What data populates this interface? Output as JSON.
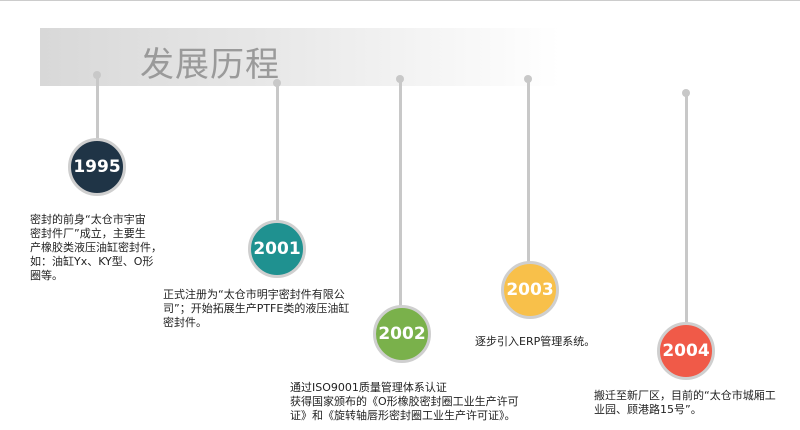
{
  "header": {
    "title": "发展历程"
  },
  "timeline": [
    {
      "year": "1995",
      "color": "#1f3446",
      "text": "密封的前身“太仓市宇宙\n密封件厂”成立，主要生\n产橡胶类液压油缸密封件，\n如：油缸Yx、KY型、O形\n圈等。"
    },
    {
      "year": "2001",
      "color": "#1f9190",
      "text": "正式注册为“太仓市明宇密封件有限公\n司”；开始拓展生产PTFE类的液压油缸\n密封件。"
    },
    {
      "year": "2002",
      "color": "#7ab14b",
      "text": "通过ISO9001质量管理体系认证\n获得国家颁布的《O形橡胶密封圈工业生产许可\n证》和《旋转轴唇形密封圈工业生产许可证》。"
    },
    {
      "year": "2003",
      "color": "#f8c04a",
      "text": "逐步引入ERP管理系统。"
    },
    {
      "year": "2004",
      "color": "#f05a48",
      "text": "搬迁至新厂区，目前的“太仓市城厢工\n业园、顾港路15号”。"
    }
  ]
}
